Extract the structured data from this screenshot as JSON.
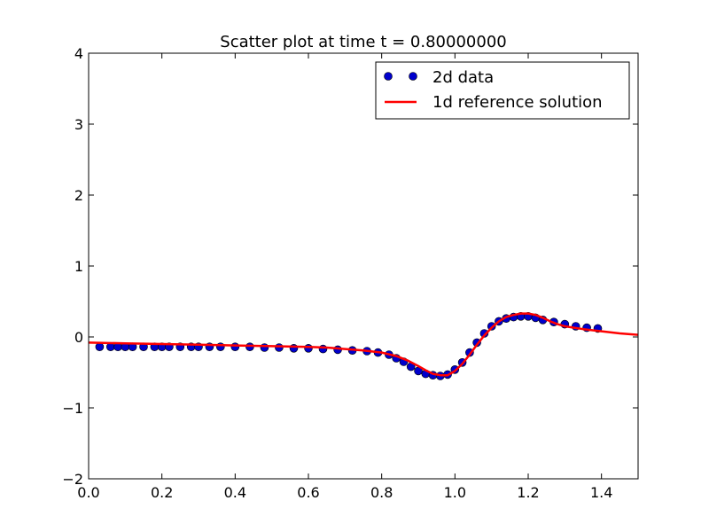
{
  "chart_data": {
    "type": "scatter",
    "title": "Scatter plot at time t =     0.80000000",
    "xlabel": "",
    "ylabel": "",
    "xlim": [
      0.0,
      1.5
    ],
    "ylim": [
      -2,
      4
    ],
    "xticks": [
      "0.0",
      "0.2",
      "0.4",
      "0.6",
      "0.8",
      "1.0",
      "1.2",
      "1.4"
    ],
    "yticks": [
      "−2",
      "−1",
      "0",
      "1",
      "2",
      "3",
      "4"
    ],
    "grid": false,
    "legend_placement": "top-right",
    "series": [
      {
        "name": "2d data",
        "kind": "scatter",
        "color": "#0000cc",
        "x": [
          0.03,
          0.06,
          0.08,
          0.1,
          0.12,
          0.15,
          0.18,
          0.2,
          0.22,
          0.25,
          0.28,
          0.3,
          0.33,
          0.36,
          0.4,
          0.44,
          0.48,
          0.52,
          0.56,
          0.6,
          0.64,
          0.68,
          0.72,
          0.76,
          0.79,
          0.82,
          0.84,
          0.86,
          0.88,
          0.9,
          0.92,
          0.94,
          0.96,
          0.98,
          1.0,
          1.02,
          1.04,
          1.06,
          1.08,
          1.1,
          1.12,
          1.14,
          1.16,
          1.18,
          1.2,
          1.22,
          1.24,
          1.27,
          1.3,
          1.33,
          1.36,
          1.39
        ],
        "y": [
          -0.14,
          -0.14,
          -0.14,
          -0.14,
          -0.14,
          -0.14,
          -0.14,
          -0.14,
          -0.14,
          -0.14,
          -0.14,
          -0.14,
          -0.14,
          -0.14,
          -0.14,
          -0.14,
          -0.15,
          -0.15,
          -0.16,
          -0.16,
          -0.17,
          -0.18,
          -0.19,
          -0.2,
          -0.22,
          -0.25,
          -0.3,
          -0.35,
          -0.42,
          -0.48,
          -0.52,
          -0.54,
          -0.55,
          -0.53,
          -0.46,
          -0.36,
          -0.22,
          -0.08,
          0.05,
          0.15,
          0.22,
          0.26,
          0.28,
          0.29,
          0.29,
          0.27,
          0.24,
          0.21,
          0.18,
          0.15,
          0.13,
          0.12
        ]
      },
      {
        "name": "1d reference solution",
        "kind": "line",
        "color": "#ff0000",
        "x": [
          0.0,
          0.1,
          0.2,
          0.3,
          0.4,
          0.5,
          0.6,
          0.65,
          0.7,
          0.75,
          0.8,
          0.84,
          0.87,
          0.9,
          0.92,
          0.94,
          0.96,
          0.98,
          1.0,
          1.02,
          1.04,
          1.06,
          1.08,
          1.1,
          1.12,
          1.14,
          1.16,
          1.18,
          1.2,
          1.22,
          1.24,
          1.26,
          1.28,
          1.3,
          1.35,
          1.4,
          1.45,
          1.5
        ],
        "y": [
          -0.08,
          -0.09,
          -0.1,
          -0.11,
          -0.12,
          -0.13,
          -0.14,
          -0.15,
          -0.17,
          -0.19,
          -0.22,
          -0.27,
          -0.33,
          -0.41,
          -0.47,
          -0.52,
          -0.54,
          -0.54,
          -0.48,
          -0.38,
          -0.25,
          -0.11,
          0.02,
          0.13,
          0.22,
          0.28,
          0.31,
          0.33,
          0.33,
          0.31,
          0.27,
          0.22,
          0.18,
          0.15,
          0.11,
          0.08,
          0.05,
          0.03
        ]
      }
    ]
  }
}
